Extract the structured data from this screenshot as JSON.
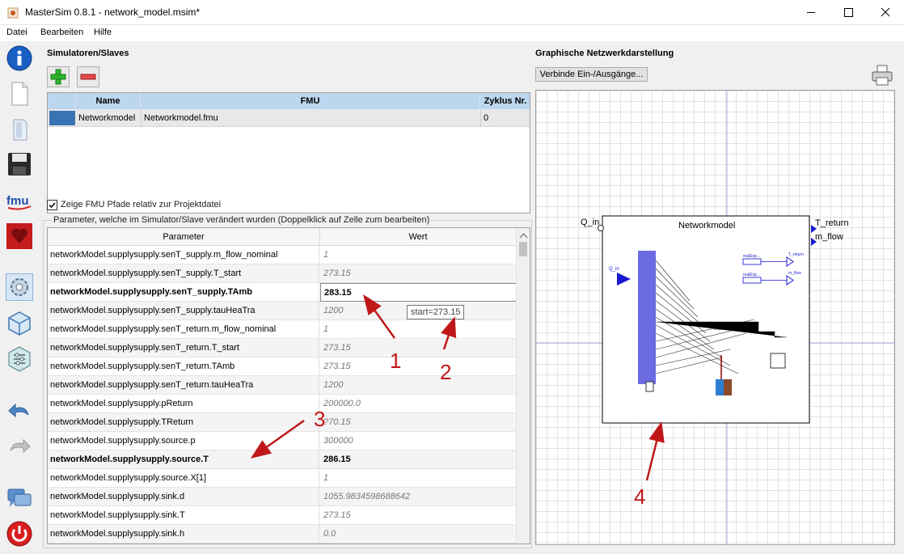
{
  "window": {
    "title": "MasterSim 0.8.1 - network_model.msim*"
  },
  "menu": [
    "Datei",
    "Bearbeiten",
    "Hilfe"
  ],
  "sidebar": [
    "info-icon",
    "new-file-icon",
    "open-file-icon",
    "save-icon",
    "fmu-icon",
    "heart-icon",
    "settings-icon",
    "cube-icon",
    "sliders-icon",
    "undo-icon",
    "redo-icon",
    "chat-icon",
    "power-icon"
  ],
  "simulators": {
    "title": "Simulatoren/Slaves",
    "headers": {
      "color": "",
      "name": "Name",
      "fmu": "FMU",
      "cycle": "Zyklus Nr."
    },
    "rows": [
      {
        "color": "#3a73b3",
        "name": "Networkmodel",
        "fmu": "Networkmodel.fmu",
        "cycle": "0"
      }
    ],
    "relative_paths_label": "Zeige FMU Pfade relativ zur Projektdatei"
  },
  "parameters": {
    "group_label": "Parameter, welche im Simulator/Slave verändert wurden (Doppelklick auf Zelle zum bearbeiten)",
    "headers": {
      "name": "Parameter",
      "value": "Wert"
    },
    "rows": [
      {
        "name": "networkModel.supplysupply.senT_supply.m_flow_nominal",
        "value": "1",
        "changed": false
      },
      {
        "name": "networkModel.supplysupply.senT_supply.T_start",
        "value": "273.15",
        "changed": false
      },
      {
        "name": "networkModel.supplysupply.senT_supply.TAmb",
        "value": "283.15",
        "changed": true
      },
      {
        "name": "networkModel.supplysupply.senT_supply.tauHeaTra",
        "value": "1200",
        "changed": false
      },
      {
        "name": "networkModel.supplysupply.senT_return.m_flow_nominal",
        "value": "1",
        "changed": false
      },
      {
        "name": "networkModel.supplysupply.senT_return.T_start",
        "value": "273.15",
        "changed": false
      },
      {
        "name": "networkModel.supplysupply.senT_return.TAmb",
        "value": "273.15",
        "changed": false
      },
      {
        "name": "networkModel.supplysupply.senT_return.tauHeaTra",
        "value": "1200",
        "changed": false
      },
      {
        "name": "networkModel.supplysupply.pReturn",
        "value": "200000.0",
        "changed": false
      },
      {
        "name": "networkModel.supplysupply.TReturn",
        "value": "?70.15",
        "changed": false
      },
      {
        "name": "networkModel.supplysupply.source.p",
        "value": "300000",
        "changed": false
      },
      {
        "name": "networkModel.supplysupply.source.T",
        "value": "286.15",
        "changed": true
      },
      {
        "name": "networkModel.supplysupply.source.X[1]",
        "value": "1",
        "changed": false
      },
      {
        "name": "networkModel.supplysupply.sink.d",
        "value": "1055.9834598688642",
        "changed": false
      },
      {
        "name": "networkModel.supplysupply.sink.T",
        "value": "273.15",
        "changed": false
      },
      {
        "name": "networkModel.supplysupply.sink.h",
        "value": "0.0",
        "changed": false
      }
    ],
    "tooltip": "start=273.15"
  },
  "network": {
    "title": "Graphische Netzwerkdarstellung",
    "connect_button": "Verbinde Ein-/Ausgänge...",
    "block": {
      "name": "Networkmodel",
      "input": "Q_in",
      "outputs": [
        "T_return",
        "m_flow"
      ],
      "inner_labels": {
        "q_in": "Q_in",
        "inc": "inc...",
        "real1": "realExp...",
        "real2": "realExp...",
        "t_return": "T_return",
        "m_flow": "m_flow"
      }
    }
  },
  "annotations": [
    "1",
    "2",
    "3",
    "4"
  ]
}
